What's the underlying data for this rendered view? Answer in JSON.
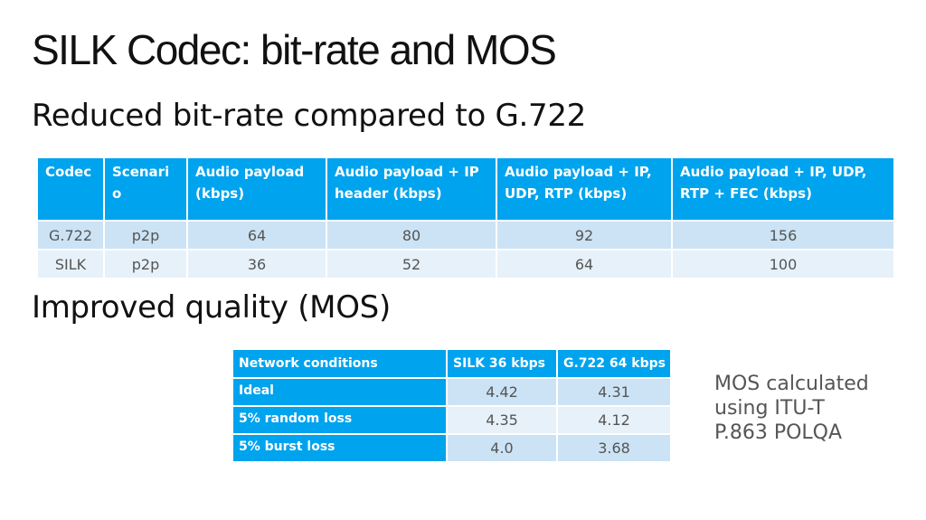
{
  "title": "SILK Codec: bit-rate and MOS",
  "section1": "Reduced bit-rate compared to G.722",
  "section2": "Improved quality (MOS)",
  "bitrate_table": {
    "headers": [
      "Codec",
      "Scenari o",
      "Audio payload (kbps)",
      "Audio payload + IP header (kbps)",
      "Audio payload + IP, UDP, RTP (kbps)",
      "Audio payload + IP, UDP, RTP + FEC (kbps)"
    ],
    "rows": [
      [
        "G.722",
        "p2p",
        "64",
        "80",
        "92",
        "156"
      ],
      [
        "SILK",
        "p2p",
        "36",
        "52",
        "64",
        "100"
      ]
    ]
  },
  "mos_table": {
    "headers": [
      "Network conditions",
      "SILK 36 kbps",
      "G.722 64 kbps"
    ],
    "rows": [
      [
        "Ideal",
        "4.42",
        "4.31"
      ],
      [
        "5% random loss",
        "4.35",
        "4.12"
      ],
      [
        "5% burst loss",
        "4.0",
        "3.68"
      ]
    ]
  },
  "note": "MOS calculated using ITU-T P.863 POLQA",
  "colors": {
    "header_blue": "#00a3ee",
    "row_dark": "#cbe3f5",
    "row_light": "#e6f1fa"
  }
}
